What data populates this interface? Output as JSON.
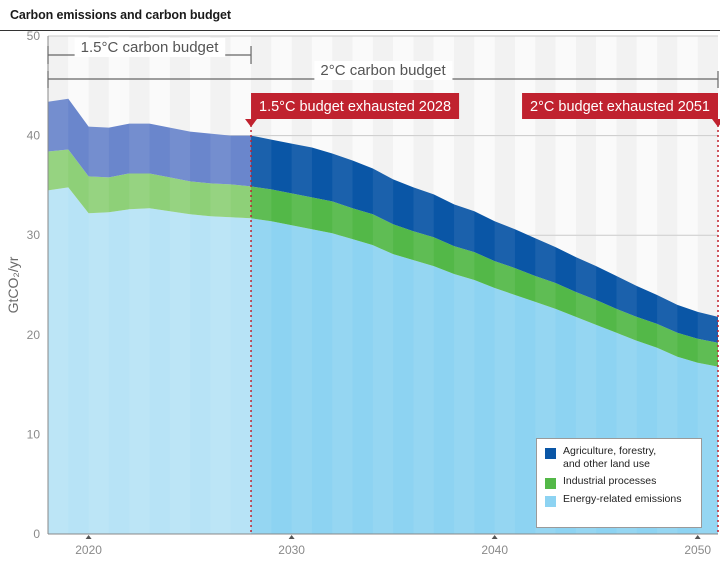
{
  "title": "Carbon emissions and carbon budget",
  "colors": {
    "agriculture": "#0a56a6",
    "industrial": "#53b848",
    "energy": "#8dd3f2",
    "agriculture_pre": "#6a86cc",
    "industrial_pre": "#8ed078",
    "energy_pre": "#b7e3f6",
    "flag": "#c0222f",
    "marker_line": "#c0222f"
  },
  "chart_data": {
    "type": "area",
    "title": "Carbon emissions and carbon budget",
    "ylabel": "GtCO₂/yr",
    "xlabel": "",
    "stacked": true,
    "x": [
      2018,
      2019,
      2020,
      2021,
      2022,
      2023,
      2024,
      2025,
      2026,
      2027,
      2028,
      2029,
      2030,
      2031,
      2032,
      2033,
      2034,
      2035,
      2036,
      2037,
      2038,
      2039,
      2040,
      2041,
      2042,
      2043,
      2044,
      2045,
      2046,
      2047,
      2048,
      2049,
      2050,
      2051
    ],
    "series": [
      {
        "name": "Energy-related emissions",
        "values": [
          34.5,
          34.8,
          32.2,
          32.3,
          32.6,
          32.7,
          32.4,
          32.1,
          31.9,
          31.8,
          31.7,
          31.4,
          31.0,
          30.6,
          30.2,
          29.6,
          29.0,
          28.1,
          27.5,
          26.9,
          26.1,
          25.5,
          24.7,
          24.0,
          23.3,
          22.6,
          21.8,
          21.0,
          20.2,
          19.4,
          18.7,
          17.8,
          17.2,
          16.8
        ]
      },
      {
        "name": "Industrial processes",
        "values": [
          3.9,
          3.8,
          3.7,
          3.5,
          3.6,
          3.5,
          3.4,
          3.3,
          3.3,
          3.3,
          3.2,
          3.2,
          3.2,
          3.2,
          3.2,
          3.1,
          3.1,
          3.0,
          2.9,
          2.9,
          2.8,
          2.8,
          2.7,
          2.7,
          2.6,
          2.6,
          2.5,
          2.5,
          2.4,
          2.4,
          2.4,
          2.4,
          2.4,
          2.4
        ]
      },
      {
        "name": "Agriculture, forestry, and other land use",
        "values": [
          5.0,
          5.1,
          5.0,
          5.0,
          5.0,
          5.0,
          5.0,
          5.0,
          5.0,
          4.9,
          5.1,
          5.0,
          5.0,
          5.0,
          4.8,
          4.8,
          4.6,
          4.5,
          4.4,
          4.3,
          4.2,
          4.1,
          4.0,
          3.9,
          3.8,
          3.6,
          3.5,
          3.4,
          3.3,
          3.1,
          2.9,
          2.8,
          2.7,
          2.6
        ]
      }
    ],
    "ylim": [
      0,
      50
    ],
    "xlim": [
      2018,
      2051
    ],
    "yticks": [
      "0",
      "10",
      "20",
      "30",
      "40",
      "50"
    ],
    "xticks": [
      "2020",
      "2030",
      "2040",
      "2050"
    ],
    "grid": "horizontal",
    "legend_position": "bottom-right",
    "annotations": {
      "budget_15": {
        "label": "1.5°C carbon budget",
        "from": 2018,
        "to": 2028
      },
      "budget_2": {
        "label": "2°C carbon budget",
        "from": 2018,
        "to": 2051
      },
      "exhausted_15": {
        "label": "1.5°C budget exhausted 2028",
        "year": 2028
      },
      "exhausted_2": {
        "label": "2°C budget exhausted 2051",
        "year": 2051
      }
    }
  },
  "legend": {
    "items": [
      {
        "line1": "Agriculture, forestry,",
        "line2": "and other land use",
        "color_key": "agriculture"
      },
      {
        "line1": "Industrial processes",
        "line2": "",
        "color_key": "industrial"
      },
      {
        "line1": "Energy-related emissions",
        "line2": "",
        "color_key": "energy"
      }
    ]
  }
}
